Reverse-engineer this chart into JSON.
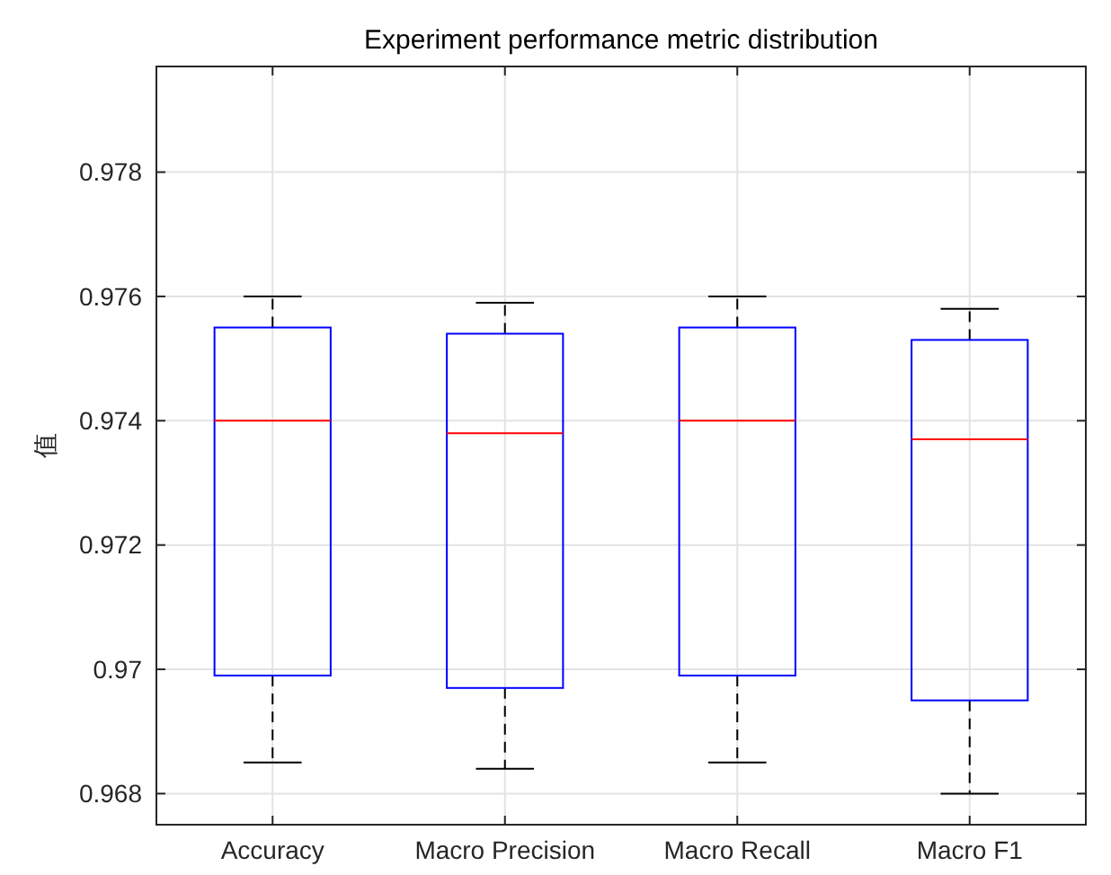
{
  "chart_data": {
    "type": "box",
    "title": "Experiment performance metric distribution",
    "ylabel": "值",
    "categories": [
      "Accuracy",
      "Macro Precision",
      "Macro Recall",
      "Macro F1"
    ],
    "boxes": [
      {
        "low": 0.9685,
        "q1": 0.9699,
        "median": 0.974,
        "q3": 0.9755,
        "high": 0.976
      },
      {
        "low": 0.9684,
        "q1": 0.9697,
        "median": 0.9738,
        "q3": 0.9754,
        "high": 0.9759
      },
      {
        "low": 0.9685,
        "q1": 0.9699,
        "median": 0.974,
        "q3": 0.9755,
        "high": 0.976
      },
      {
        "low": 0.968,
        "q1": 0.9695,
        "median": 0.9737,
        "q3": 0.9753,
        "high": 0.9758
      }
    ],
    "color": "#0000ff",
    "ylim": [
      0.9675,
      0.9797
    ],
    "yticks": [
      0.968,
      0.97,
      0.972,
      0.974,
      0.976,
      0.978
    ],
    "grid": true
  }
}
